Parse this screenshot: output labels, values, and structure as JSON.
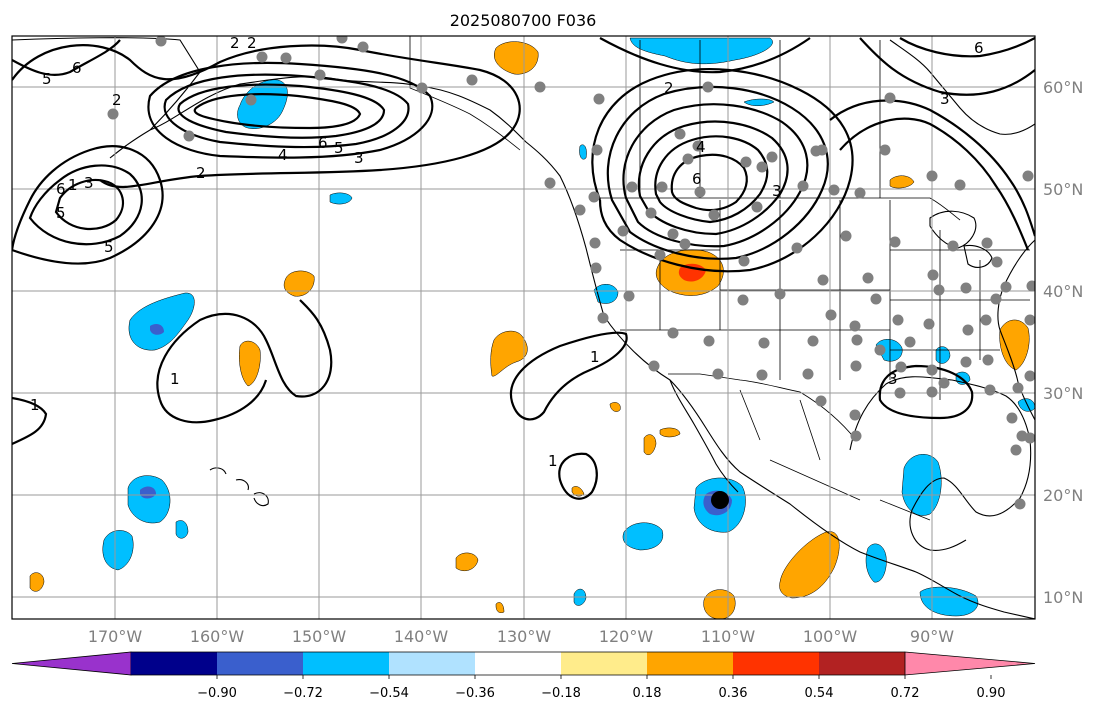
{
  "title": "2025080700 F036",
  "lat_labels": [
    "60°N",
    "50°N",
    "40°N",
    "30°N",
    "20°N",
    "10°N"
  ],
  "lon_labels": [
    "170°W",
    "160°W",
    "150°W",
    "140°W",
    "130°W",
    "120°W",
    "110°W",
    "100°W",
    "90°W"
  ],
  "colorbar": {
    "ticks": [
      "−0.90",
      "−0.72",
      "−0.54",
      "−0.36",
      "−0.18",
      "0.18",
      "0.36",
      "0.54",
      "0.72",
      "0.90"
    ],
    "colors": [
      "#9932CC",
      "#00008B",
      "#3A5FCD",
      "#00BFFF",
      "#B0E2FF",
      "#FFFFFF",
      "#FFEC8B",
      "#FFA500",
      "#FF3300",
      "#B22222",
      "#FF88AA"
    ]
  },
  "contour_labels": [
    "2",
    "6",
    "5",
    "2",
    "4",
    "6",
    "5",
    "3",
    "2",
    "5",
    "6",
    "3",
    "1",
    "5",
    "2",
    "4",
    "6",
    "3",
    "6",
    "3",
    "2",
    "1",
    "1",
    "1",
    "1",
    "3"
  ],
  "fill_colors": {
    "strong_neg": "#3A5FCD",
    "neg": "#00BFFF",
    "pos": "#FFA500",
    "strong_pos": "#FF3300"
  },
  "marker_color": "#000000",
  "station_color": "#808080"
}
